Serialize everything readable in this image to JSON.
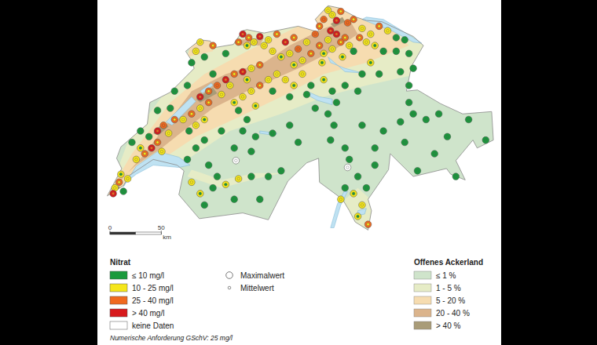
{
  "chart_data": {
    "type": "map",
    "extent": {
      "lon": [
        5.9,
        10.6
      ],
      "lat": [
        45.75,
        47.85
      ]
    },
    "nitrate_legend": {
      "title": "Nitrat",
      "classes": [
        {
          "label": "≤ 10 mg/l",
          "max": 10,
          "color": "#1a9a3c"
        },
        {
          "label": "10 - 25 mg/l",
          "max": 25,
          "color": "#f5e61a"
        },
        {
          "label": "25 - 40 mg/l",
          "max": 40,
          "color": "#f0691f"
        },
        {
          "label": "> 40 mg/l",
          "max": null,
          "color": "#d7191c"
        }
      ],
      "no_data": {
        "label": "keine Daten",
        "color": "#ffffff"
      }
    },
    "symbol_legend": {
      "max_label": "Maximalwert",
      "mean_label": "Mittelwert"
    },
    "landuse_legend": {
      "title": "Offenes Ackerland",
      "classes": [
        {
          "label": "≤ 1 %",
          "color": "#cfe4cb"
        },
        {
          "label": "1 - 5 %",
          "color": "#e6ecc6"
        },
        {
          "label": "5 - 20 %",
          "color": "#f6dcb0"
        },
        {
          "label": "20 - 40 %",
          "color": "#dbb48c"
        },
        {
          "label": "> 40 %",
          "color": "#a99c78"
        }
      ]
    },
    "note": "Numerische Anforderung GSchV: 25 mg/l",
    "scale_bar": {
      "ticks": [
        0,
        50
      ],
      "unit": "km"
    },
    "stations": [
      {
        "lon": 6.05,
        "lat": 46.2,
        "max": 18,
        "mean": 12
      },
      {
        "lon": 6.1,
        "lat": 46.25,
        "max": 30,
        "mean": 22
      },
      {
        "lon": 6.15,
        "lat": 46.17,
        "max": 8,
        "mean": 5
      },
      {
        "lon": 6.2,
        "lat": 46.28,
        "max": 20,
        "mean": 14
      },
      {
        "lon": 6.03,
        "lat": 46.15,
        "max": 45,
        "mean": 30
      },
      {
        "lon": 6.12,
        "lat": 46.32,
        "max": 15,
        "mean": 9
      },
      {
        "lon": 6.3,
        "lat": 46.45,
        "max": 22,
        "mean": 15
      },
      {
        "lon": 6.4,
        "lat": 46.5,
        "max": 35,
        "mean": 25
      },
      {
        "lon": 6.48,
        "lat": 46.55,
        "max": 42,
        "mean": 30
      },
      {
        "lon": 6.55,
        "lat": 46.6,
        "max": 28,
        "mean": 20
      },
      {
        "lon": 6.35,
        "lat": 46.55,
        "max": 12,
        "mean": 8
      },
      {
        "lon": 6.6,
        "lat": 46.52,
        "max": 18,
        "mean": 11
      },
      {
        "lon": 6.55,
        "lat": 46.7,
        "max": 45,
        "mean": 35
      },
      {
        "lon": 6.62,
        "lat": 46.75,
        "max": 38,
        "mean": 26
      },
      {
        "lon": 6.68,
        "lat": 46.68,
        "max": 20,
        "mean": 13
      },
      {
        "lon": 6.75,
        "lat": 46.8,
        "max": 30,
        "mean": 21
      },
      {
        "lon": 6.45,
        "lat": 46.65,
        "max": 8,
        "mean": 5
      },
      {
        "lon": 6.7,
        "lat": 46.9,
        "max": 6,
        "mean": 4
      },
      {
        "lon": 6.25,
        "lat": 46.6,
        "max": 5,
        "mean": 3
      },
      {
        "lon": 6.35,
        "lat": 46.7,
        "max": 4,
        "mean": 3
      },
      {
        "lon": 6.55,
        "lat": 46.88,
        "max": 5,
        "mean": 3
      },
      {
        "lon": 6.75,
        "lat": 47.05,
        "max": 6,
        "mean": 4
      },
      {
        "lon": 6.9,
        "lat": 47.1,
        "max": 5,
        "mean": 3
      },
      {
        "lon": 6.85,
        "lat": 46.8,
        "max": 24,
        "mean": 16
      },
      {
        "lon": 6.95,
        "lat": 46.85,
        "max": 35,
        "mean": 25
      },
      {
        "lon": 7.05,
        "lat": 46.9,
        "max": 19,
        "mean": 12
      },
      {
        "lon": 7.1,
        "lat": 46.8,
        "max": 14,
        "mean": 9
      },
      {
        "lon": 7.15,
        "lat": 46.95,
        "max": 28,
        "mean": 18
      },
      {
        "lon": 6.92,
        "lat": 46.7,
        "max": 9,
        "mean": 6
      },
      {
        "lon": 7.0,
        "lat": 46.75,
        "max": 17,
        "mean": 11
      },
      {
        "lon": 7.05,
        "lat": 47.0,
        "max": 42,
        "mean": 30
      },
      {
        "lon": 7.15,
        "lat": 47.05,
        "max": 30,
        "mean": 20
      },
      {
        "lon": 7.25,
        "lat": 47.1,
        "max": 38,
        "mean": 26
      },
      {
        "lon": 7.35,
        "lat": 47.15,
        "max": 45,
        "mean": 33
      },
      {
        "lon": 7.45,
        "lat": 47.2,
        "max": 32,
        "mean": 22
      },
      {
        "lon": 7.55,
        "lat": 47.22,
        "max": 41,
        "mean": 30
      },
      {
        "lon": 7.65,
        "lat": 47.25,
        "max": 22,
        "mean": 15
      },
      {
        "lon": 7.75,
        "lat": 47.28,
        "max": 36,
        "mean": 25
      },
      {
        "lon": 7.2,
        "lat": 47.2,
        "max": 8,
        "mean": 5
      },
      {
        "lon": 7.4,
        "lat": 47.1,
        "max": 20,
        "mean": 13
      },
      {
        "lon": 7.6,
        "lat": 47.15,
        "max": 16,
        "mean": 10
      },
      {
        "lon": 7.3,
        "lat": 47.02,
        "max": 24,
        "mean": 16
      },
      {
        "lon": 7.0,
        "lat": 47.4,
        "max": 20,
        "mean": 12
      },
      {
        "lon": 7.1,
        "lat": 47.35,
        "max": 8,
        "mean": 5
      },
      {
        "lon": 7.2,
        "lat": 47.45,
        "max": 30,
        "mean": 20
      },
      {
        "lon": 7.35,
        "lat": 47.38,
        "max": 6,
        "mean": 4
      },
      {
        "lon": 6.95,
        "lat": 47.3,
        "max": 5,
        "mean": 3
      },
      {
        "lon": 7.05,
        "lat": 47.48,
        "max": 24,
        "mean": 15
      },
      {
        "lon": 7.55,
        "lat": 47.55,
        "max": 42,
        "mean": 30
      },
      {
        "lon": 7.62,
        "lat": 47.52,
        "max": 35,
        "mean": 24
      },
      {
        "lon": 7.68,
        "lat": 47.48,
        "max": 22,
        "mean": 14
      },
      {
        "lon": 7.75,
        "lat": 47.53,
        "max": 45,
        "mean": 32
      },
      {
        "lon": 7.85,
        "lat": 47.5,
        "max": 18,
        "mean": 12
      },
      {
        "lon": 7.6,
        "lat": 47.45,
        "max": 12,
        "mean": 8
      },
      {
        "lon": 7.5,
        "lat": 47.48,
        "max": 28,
        "mean": 19
      },
      {
        "lon": 7.8,
        "lat": 47.45,
        "max": 20,
        "mean": 13
      },
      {
        "lon": 7.95,
        "lat": 47.55,
        "max": 33,
        "mean": 22
      },
      {
        "lon": 8.05,
        "lat": 47.48,
        "max": 44,
        "mean": 31
      },
      {
        "lon": 8.15,
        "lat": 47.52,
        "max": 26,
        "mean": 18
      },
      {
        "lon": 8.2,
        "lat": 47.42,
        "max": 40,
        "mean": 28
      },
      {
        "lon": 8.3,
        "lat": 47.48,
        "max": 21,
        "mean": 14
      },
      {
        "lon": 8.35,
        "lat": 47.38,
        "max": 30,
        "mean": 20
      },
      {
        "lon": 8.1,
        "lat": 47.38,
        "max": 17,
        "mean": 11
      },
      {
        "lon": 8.25,
        "lat": 47.32,
        "max": 23,
        "mean": 15
      },
      {
        "lon": 8.0,
        "lat": 47.35,
        "max": 15,
        "mean": 10
      },
      {
        "lon": 8.4,
        "lat": 47.55,
        "max": 38,
        "mean": 27
      },
      {
        "lon": 7.9,
        "lat": 47.4,
        "max": 19,
        "mean": 12
      },
      {
        "lon": 8.15,
        "lat": 47.28,
        "max": 12,
        "mean": 8
      },
      {
        "lon": 7.45,
        "lat": 46.95,
        "max": 16,
        "mean": 10
      },
      {
        "lon": 7.55,
        "lat": 47.0,
        "max": 22,
        "mean": 14
      },
      {
        "lon": 7.65,
        "lat": 47.05,
        "max": 18,
        "mean": 12
      },
      {
        "lon": 7.75,
        "lat": 47.1,
        "max": 28,
        "mean": 19
      },
      {
        "lon": 7.85,
        "lat": 47.15,
        "max": 21,
        "mean": 14
      },
      {
        "lon": 7.95,
        "lat": 47.2,
        "max": 24,
        "mean": 16
      },
      {
        "lon": 7.5,
        "lat": 46.88,
        "max": 9,
        "mean": 6
      },
      {
        "lon": 7.7,
        "lat": 46.92,
        "max": 13,
        "mean": 8
      },
      {
        "lon": 7.9,
        "lat": 47.05,
        "max": 7,
        "mean": 5
      },
      {
        "lon": 7.6,
        "lat": 46.8,
        "max": 6,
        "mean": 4
      },
      {
        "lon": 8.05,
        "lat": 47.15,
        "max": 17,
        "mean": 11
      },
      {
        "lon": 8.15,
        "lat": 47.1,
        "max": 12,
        "mean": 8
      },
      {
        "lon": 8.25,
        "lat": 47.2,
        "max": 20,
        "mean": 13
      },
      {
        "lon": 8.35,
        "lat": 47.1,
        "max": 8,
        "mean": 5
      },
      {
        "lon": 8.1,
        "lat": 47.0,
        "max": 6,
        "mean": 4
      },
      {
        "lon": 8.3,
        "lat": 47.02,
        "max": 7,
        "mean": 5
      },
      {
        "lon": 8.45,
        "lat": 47.45,
        "max": 26,
        "mean": 18
      },
      {
        "lon": 8.55,
        "lat": 47.5,
        "max": 22,
        "mean": 15
      },
      {
        "lon": 8.6,
        "lat": 47.42,
        "max": 18,
        "mean": 12
      },
      {
        "lon": 8.7,
        "lat": 47.48,
        "max": 35,
        "mean": 24
      },
      {
        "lon": 8.5,
        "lat": 47.38,
        "max": 14,
        "mean": 9
      },
      {
        "lon": 8.65,
        "lat": 47.55,
        "max": 42,
        "mean": 30
      },
      {
        "lon": 8.75,
        "lat": 47.52,
        "max": 31,
        "mean": 21
      },
      {
        "lon": 8.8,
        "lat": 47.45,
        "max": 20,
        "mean": 13
      },
      {
        "lon": 8.72,
        "lat": 47.35,
        "max": 16,
        "mean": 10
      },
      {
        "lon": 8.48,
        "lat": 47.3,
        "max": 12,
        "mean": 8
      },
      {
        "lon": 8.58,
        "lat": 47.58,
        "max": 45,
        "mean": 34
      },
      {
        "lon": 8.85,
        "lat": 47.4,
        "max": 9,
        "mean": 6
      },
      {
        "lon": 8.5,
        "lat": 47.68,
        "max": 38,
        "mean": 26
      },
      {
        "lon": 8.6,
        "lat": 47.72,
        "max": 22,
        "mean": 15
      },
      {
        "lon": 8.65,
        "lat": 47.67,
        "max": 44,
        "mean": 33
      },
      {
        "lon": 8.7,
        "lat": 47.75,
        "max": 30,
        "mean": 20
      },
      {
        "lon": 8.78,
        "lat": 47.65,
        "max": 40,
        "mean": 29
      },
      {
        "lon": 8.55,
        "lat": 47.76,
        "max": 18,
        "mean": 12
      },
      {
        "lon": 8.85,
        "lat": 47.68,
        "max": 26,
        "mean": 17
      },
      {
        "lon": 8.45,
        "lat": 47.62,
        "max": 33,
        "mean": 23
      },
      {
        "lon": 8.95,
        "lat": 47.6,
        "max": 24,
        "mean": 16
      },
      {
        "lon": 9.05,
        "lat": 47.55,
        "max": 19,
        "mean": 12
      },
      {
        "lon": 9.15,
        "lat": 47.62,
        "max": 28,
        "mean": 19
      },
      {
        "lon": 9.25,
        "lat": 47.58,
        "max": 17,
        "mean": 11
      },
      {
        "lon": 9.35,
        "lat": 47.52,
        "max": 8,
        "mean": 5
      },
      {
        "lon": 9.0,
        "lat": 47.48,
        "max": 22,
        "mean": 14
      },
      {
        "lon": 9.1,
        "lat": 47.45,
        "max": 14,
        "mean": 9
      },
      {
        "lon": 9.45,
        "lat": 47.5,
        "max": 6,
        "mean": 4
      },
      {
        "lon": 8.92,
        "lat": 47.52,
        "max": 30,
        "mean": 20
      },
      {
        "lon": 9.2,
        "lat": 47.4,
        "max": 7,
        "mean": 5
      },
      {
        "lon": 9.35,
        "lat": 47.4,
        "max": 5,
        "mean": 3
      },
      {
        "lon": 9.5,
        "lat": 47.38,
        "max": 9,
        "mean": 6
      },
      {
        "lon": 9.55,
        "lat": 47.25,
        "max": 6,
        "mean": 4
      },
      {
        "lon": 9.05,
        "lat": 47.3,
        "max": 12,
        "mean": 8
      },
      {
        "lon": 9.15,
        "lat": 47.2,
        "max": 5,
        "mean": 3
      },
      {
        "lon": 9.4,
        "lat": 47.22,
        "max": 4,
        "mean": 3
      },
      {
        "lon": 9.5,
        "lat": 47.1,
        "max": 8,
        "mean": 5
      },
      {
        "lon": 8.95,
        "lat": 47.2,
        "max": 6,
        "mean": 4
      },
      {
        "lon": 8.5,
        "lat": 47.15,
        "max": 11,
        "mean": 7
      },
      {
        "lon": 8.6,
        "lat": 47.05,
        "max": 6,
        "mean": 4
      },
      {
        "lon": 8.75,
        "lat": 47.1,
        "max": 5,
        "mean": 3
      },
      {
        "lon": 8.4,
        "lat": 46.9,
        "max": 4,
        "mean": 3
      },
      {
        "lon": 8.65,
        "lat": 46.95,
        "max": 5,
        "mean": 3
      },
      {
        "lon": 8.9,
        "lat": 47.05,
        "max": 4,
        "mean": 2
      },
      {
        "lon": 8.55,
        "lat": 46.85,
        "max": 3,
        "mean": 2
      },
      {
        "lon": 7.3,
        "lat": 46.7,
        "max": 5,
        "mean": 3
      },
      {
        "lon": 7.55,
        "lat": 46.7,
        "max": 4,
        "mean": 3
      },
      {
        "lon": 7.7,
        "lat": 46.65,
        "max": 5,
        "mean": 3
      },
      {
        "lon": 7.9,
        "lat": 46.68,
        "max": 4,
        "mean": 2
      },
      {
        "lon": 8.1,
        "lat": 46.75,
        "max": 5,
        "mean": 3
      },
      {
        "lon": 7.45,
        "lat": 46.55,
        "max": 3,
        "mean": 2
      },
      {
        "lon": 7.65,
        "lat": 46.52,
        "max": 4,
        "mean": 2
      },
      {
        "lon": 8.2,
        "lat": 46.6,
        "max": 3,
        "mean": 2
      },
      {
        "lon": 7.0,
        "lat": 46.55,
        "max": 6,
        "mean": 4
      },
      {
        "lon": 7.1,
        "lat": 46.62,
        "max": 8,
        "mean": 5
      },
      {
        "lon": 6.9,
        "lat": 46.45,
        "max": 7,
        "mean": 4
      },
      {
        "lon": 7.15,
        "lat": 46.4,
        "max": 5,
        "mean": 3
      },
      {
        "lon": 6.95,
        "lat": 46.25,
        "max": 18,
        "mean": 12
      },
      {
        "lon": 7.05,
        "lat": 46.15,
        "max": 14,
        "mean": 9
      },
      {
        "lon": 7.2,
        "lat": 46.2,
        "max": 8,
        "mean": 5
      },
      {
        "lon": 7.35,
        "lat": 46.23,
        "max": 12,
        "mean": 8
      },
      {
        "lon": 7.5,
        "lat": 46.28,
        "max": 20,
        "mean": 13
      },
      {
        "lon": 7.65,
        "lat": 46.3,
        "max": 9,
        "mean": 6
      },
      {
        "lon": 7.85,
        "lat": 46.3,
        "max": 6,
        "mean": 4
      },
      {
        "lon": 8.0,
        "lat": 46.35,
        "max": 5,
        "mean": 3
      },
      {
        "lon": 7.1,
        "lat": 46.05,
        "max": 4,
        "mean": 2
      },
      {
        "lon": 7.45,
        "lat": 46.1,
        "max": 3,
        "mean": 2
      },
      {
        "lon": 7.75,
        "lat": 46.1,
        "max": 4,
        "mean": 2
      },
      {
        "lon": 7.25,
        "lat": 46.3,
        "max": 7,
        "mean": 5
      },
      {
        "lon": 8.62,
        "lat": 46.75,
        "max": 5,
        "mean": 3
      },
      {
        "lon": 8.58,
        "lat": 46.62,
        "max": 4,
        "mean": 2
      },
      {
        "lon": 8.75,
        "lat": 46.55,
        "max": 3,
        "mean": 2
      },
      {
        "lon": 9.5,
        "lat": 46.95,
        "max": 9,
        "mean": 6
      },
      {
        "lon": 9.55,
        "lat": 46.85,
        "max": 6,
        "mean": 4
      },
      {
        "lon": 9.4,
        "lat": 46.78,
        "max": 5,
        "mean": 3
      },
      {
        "lon": 9.2,
        "lat": 46.7,
        "max": 4,
        "mean": 3
      },
      {
        "lon": 9.7,
        "lat": 46.8,
        "max": 3,
        "mean": 2
      },
      {
        "lon": 9.85,
        "lat": 46.85,
        "max": 4,
        "mean": 2
      },
      {
        "lon": 10.2,
        "lat": 46.8,
        "max": 5,
        "mean": 3
      },
      {
        "lon": 9.95,
        "lat": 46.65,
        "max": 3,
        "mean": 2
      },
      {
        "lon": 9.8,
        "lat": 46.5,
        "max": 4,
        "mean": 2
      },
      {
        "lon": 9.45,
        "lat": 46.6,
        "max": 3,
        "mean": 2
      },
      {
        "lon": 9.1,
        "lat": 46.55,
        "max": 3,
        "mean": 2
      },
      {
        "lon": 10.05,
        "lat": 46.3,
        "max": 6,
        "mean": 4
      },
      {
        "lon": 10.4,
        "lat": 46.62,
        "max": 5,
        "mean": 3
      },
      {
        "lon": 9.6,
        "lat": 46.35,
        "max": 4,
        "mean": 3
      },
      {
        "lon": 8.95,
        "lat": 46.75,
        "max": 4,
        "mean": 2
      },
      {
        "lon": 8.8,
        "lat": 46.45,
        "max": 4,
        "mean": 2
      },
      {
        "lon": 8.9,
        "lat": 46.3,
        "max": 5,
        "mean": 3
      },
      {
        "lon": 9.0,
        "lat": 46.2,
        "max": 8,
        "mean": 5
      },
      {
        "lon": 8.85,
        "lat": 46.15,
        "max": 12,
        "mean": 8
      },
      {
        "lon": 8.95,
        "lat": 46.05,
        "max": 18,
        "mean": 11
      },
      {
        "lon": 8.9,
        "lat": 45.95,
        "max": 15,
        "mean": 9
      },
      {
        "lon": 9.02,
        "lat": 45.88,
        "max": 26,
        "mean": 16
      },
      {
        "lon": 8.75,
        "lat": 46.2,
        "max": 6,
        "mean": 4
      },
      {
        "lon": 9.1,
        "lat": 46.4,
        "max": 3,
        "mean": 2
      },
      {
        "lon": 8.7,
        "lat": 46.1,
        "max": 22,
        "mean": 14
      },
      {
        "lon": 7.47,
        "lat": 46.44,
        "max": null,
        "mean": null
      },
      {
        "lon": 8.78,
        "lat": 46.38,
        "max": null,
        "mean": null
      }
    ]
  }
}
